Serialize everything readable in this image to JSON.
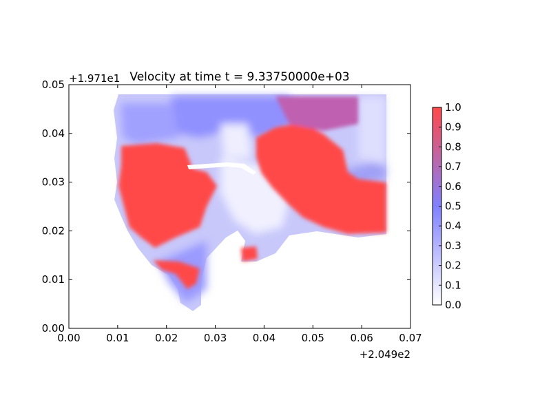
{
  "chart_data": {
    "type": "heatmap",
    "title": "Velocity at time t = 9.33750000e+03",
    "xlabel": "",
    "ylabel": "",
    "x_offset_label": "+2.049e2",
    "y_offset_label": "+1.971e1",
    "xlim": [
      0.0,
      0.07
    ],
    "ylim": [
      0.0,
      0.05
    ],
    "x_ticks": [
      "0.00",
      "0.01",
      "0.02",
      "0.03",
      "0.04",
      "0.05",
      "0.06",
      "0.07"
    ],
    "y_ticks": [
      "0.00",
      "0.01",
      "0.02",
      "0.03",
      "0.04",
      "0.05"
    ],
    "x_tick_values": [
      0.0,
      0.01,
      0.02,
      0.03,
      0.04,
      0.05,
      0.06,
      0.07
    ],
    "y_tick_values": [
      0.0,
      0.01,
      0.02,
      0.03,
      0.04,
      0.05
    ],
    "colorbar": {
      "range": [
        0.0,
        1.0
      ],
      "ticks": [
        "0.0",
        "0.1",
        "0.2",
        "0.3",
        "0.4",
        "0.5",
        "0.6",
        "0.7",
        "0.8",
        "0.9",
        "1.0"
      ],
      "tick_values": [
        0.0,
        0.1,
        0.2,
        0.3,
        0.4,
        0.5,
        0.6,
        0.7,
        0.8,
        0.9,
        1.0
      ],
      "colors": [
        "#ffffff",
        "#8080ff",
        "#ff4a4a"
      ],
      "placement": "right"
    },
    "grid": false
  }
}
